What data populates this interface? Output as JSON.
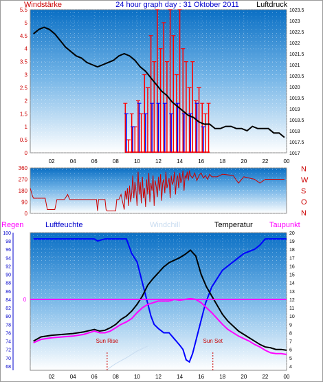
{
  "header": {
    "left": "Windstärke",
    "center": "24 hour graph day : 31 Oktober 2011",
    "right": "Luftdruck"
  },
  "x_ticks": [
    "02",
    "04",
    "06",
    "08",
    "10",
    "12",
    "14",
    "16",
    "18",
    "20",
    "22",
    "00"
  ],
  "panel1": {
    "left_ticks": [
      "5.5",
      "5",
      "4.5",
      "4",
      "3.5",
      "3",
      "2.5",
      "2",
      "1.5",
      "1",
      "0.5",
      "0"
    ],
    "right_ticks": [
      "1023.5",
      "1023",
      "1022.5",
      "1022",
      "1021.5",
      "1021",
      "1020.5",
      "1020",
      "1019.5",
      "1019",
      "1018.5",
      "1018",
      "1017.5",
      "1017"
    ]
  },
  "panel2": {
    "left_ticks": [
      "360",
      "270",
      "180",
      "90",
      "0"
    ],
    "right_letters": [
      "N",
      "W",
      "S",
      "O",
      "N"
    ]
  },
  "panel3": {
    "labels": {
      "regen": "Regen",
      "luftfeuchte": "Luftfeuchte",
      "windchill": "Windchill",
      "temperatur": "Temperatur",
      "taupunkt": "Taupunkt"
    },
    "left_ticks": [
      "100",
      "98",
      "96",
      "94",
      "92",
      "90",
      "88",
      "86",
      "84",
      "82",
      "80",
      "78",
      "76",
      "74",
      "72",
      "70",
      "68"
    ],
    "right_ticks": [
      "20",
      "19",
      "18",
      "17",
      "16",
      "15",
      "14",
      "13",
      "12",
      "11",
      "10",
      "9",
      "8",
      "7",
      "6",
      "5",
      "4"
    ],
    "zero_label": "0",
    "sunrise": "Sun Rise",
    "sunset": "Sun Set"
  },
  "colors": {
    "background_top": "#0a6fc4",
    "background_bottom": "#ffffff",
    "wind_avg": "#ff0000",
    "wind_gust": "#0000ff",
    "pressure": "#000000",
    "direction": "#cc0000",
    "humidity": "#0000ff",
    "temperature": "#000000",
    "dewpoint": "#ff00ff",
    "rain": "#ff00ff",
    "windchill": "#c8dcf0",
    "axis_left": "#cc0000",
    "axis_humidity": "#0000cc"
  },
  "chart_data": [
    {
      "type": "line",
      "title": "24 hour graph day : 31 Oktober 2011",
      "xlabel": "",
      "ylabel": "Windstärke",
      "ylabel_right": "Luftdruck",
      "xlim": [
        0,
        24
      ],
      "ylim": [
        0,
        5.5
      ],
      "ylim_right": [
        1017,
        1023.5
      ],
      "series": [
        {
          "name": "Windstärke",
          "axis": "left",
          "style": "bars",
          "color": "#ff0000",
          "x": [
            8.9,
            9.2,
            9.5,
            9.8,
            10.1,
            10.4,
            10.7,
            11.0,
            11.3,
            11.6,
            11.9,
            12.2,
            12.5,
            12.8,
            13.1,
            13.4,
            13.7,
            14.0,
            14.3,
            14.6,
            14.9,
            15.2,
            15.5,
            15.8,
            16.1,
            16.4,
            16.7
          ],
          "y": [
            1.9,
            0.5,
            1.5,
            1,
            2,
            1.5,
            3,
            2.5,
            4.5,
            3.5,
            5.5,
            4,
            5,
            3.5,
            5.5,
            4.5,
            3,
            5.5,
            4,
            3.5,
            2.5,
            3.5,
            2,
            2.5,
            1.9,
            1.5,
            1.9
          ]
        },
        {
          "name": "Böen",
          "axis": "left",
          "style": "bars",
          "color": "#0000ff",
          "x": [
            9.0,
            9.6,
            10.2,
            10.8,
            11.4,
            12.0,
            12.6,
            13.2,
            13.8,
            14.4,
            15.0,
            15.6,
            16.2
          ],
          "y": [
            1.5,
            1,
            1.9,
            1.5,
            1.9,
            1.9,
            1.9,
            1.5,
            1.9,
            1.5,
            1.5,
            1.9,
            1
          ]
        },
        {
          "name": "Luftdruck",
          "axis": "right",
          "style": "line",
          "color": "#000000",
          "x": [
            0.3,
            0.8,
            1.3,
            1.8,
            2.3,
            2.8,
            3.3,
            3.8,
            4.3,
            4.8,
            5.3,
            5.8,
            6.3,
            6.8,
            7.3,
            7.8,
            8.3,
            8.8,
            9.3,
            9.8,
            10.3,
            10.8,
            11.3,
            11.8,
            12.3,
            12.8,
            13.3,
            13.8,
            14.3,
            14.8,
            15.3,
            15.8,
            16.3,
            16.8,
            17.3,
            17.8,
            18.3,
            18.8,
            19.3,
            19.8,
            20.3,
            20.8,
            21.3,
            21.8,
            22.3,
            22.8,
            23.3,
            23.8
          ],
          "y": [
            1022.4,
            1022.6,
            1022.7,
            1022.6,
            1022.4,
            1022.1,
            1021.8,
            1021.6,
            1021.4,
            1021.3,
            1021.1,
            1021.0,
            1020.9,
            1021.0,
            1021.1,
            1021.2,
            1021.4,
            1021.5,
            1021.4,
            1021.2,
            1020.9,
            1020.7,
            1020.4,
            1020.1,
            1019.8,
            1019.6,
            1019.3,
            1019.1,
            1018.9,
            1018.7,
            1018.6,
            1018.4,
            1018.3,
            1018.3,
            1018.1,
            1018.1,
            1018.2,
            1018.2,
            1018.1,
            1018.1,
            1018.0,
            1018.2,
            1018.1,
            1018.1,
            1018.1,
            1017.9,
            1017.9,
            1017.7
          ]
        }
      ]
    },
    {
      "type": "line",
      "xlabel": "",
      "ylabel": "",
      "xlim": [
        0,
        24
      ],
      "ylim": [
        0,
        360
      ],
      "series": [
        {
          "name": "Windrichtung",
          "color": "#cc0000",
          "x": [
            0.0,
            0.2,
            0.3,
            1.4,
            1.6,
            2.3,
            2.5,
            3.2,
            3.5,
            3.7,
            4.5,
            5.5,
            6.2,
            6.3,
            6.4,
            7.0,
            7.1,
            7.2,
            8.0,
            8.1,
            8.3,
            8.5,
            8.6,
            8.8,
            8.9,
            9.0,
            9.1,
            9.2,
            9.3,
            9.4,
            9.5,
            9.6,
            9.7,
            9.8,
            9.9,
            10.0,
            10.1,
            10.2,
            10.3,
            10.4,
            10.5,
            10.6,
            10.7,
            10.8,
            10.9,
            11.0,
            11.1,
            11.2,
            11.3,
            11.4,
            11.5,
            11.6,
            11.7,
            11.8,
            11.9,
            12.0,
            12.1,
            12.2,
            12.3,
            12.4,
            12.5,
            12.6,
            12.7,
            12.8,
            12.9,
            13.0,
            13.1,
            13.2,
            13.3,
            13.4,
            13.5,
            13.6,
            13.7,
            13.8,
            13.9,
            14.0,
            14.1,
            14.2,
            14.3,
            14.4,
            14.5,
            14.6,
            14.7,
            14.8,
            14.9,
            15.0,
            15.2,
            15.4,
            15.6,
            15.8,
            16.0,
            16.2,
            16.4,
            16.6,
            16.8,
            17.0,
            17.5,
            18.0,
            19.0,
            19.5,
            20.0,
            21.0,
            21.5,
            22.0,
            23.0,
            23.8
          ],
          "y": [
            200,
            140,
            120,
            120,
            30,
            30,
            110,
            110,
            150,
            110,
            110,
            110,
            110,
            20,
            110,
            110,
            30,
            20,
            20,
            110,
            110,
            150,
            110,
            30,
            180,
            110,
            200,
            60,
            220,
            90,
            160,
            300,
            120,
            250,
            180,
            60,
            330,
            150,
            250,
            80,
            290,
            120,
            200,
            50,
            270,
            150,
            320,
            90,
            240,
            180,
            300,
            60,
            260,
            210,
            130,
            290,
            180,
            310,
            100,
            240,
            270,
            160,
            330,
            200,
            240,
            280,
            120,
            300,
            230,
            250,
            330,
            150,
            270,
            300,
            200,
            320,
            240,
            270,
            340,
            180,
            300,
            280,
            330,
            260,
            340,
            300,
            280,
            320,
            260,
            300,
            320,
            280,
            300,
            270,
            310,
            290,
            290,
            310,
            300,
            240,
            290,
            270,
            240,
            270,
            270,
            270
          ]
        }
      ]
    },
    {
      "type": "line",
      "xlabel": "",
      "ylabel": "Luftfeuchte",
      "ylabel_right": "Temperatur",
      "xlim": [
        0,
        24
      ],
      "ylim": [
        67,
        100
      ],
      "ylim_right": [
        3.5,
        20
      ],
      "series": [
        {
          "name": "Luftfeuchte",
          "axis": "left",
          "color": "#0000ff",
          "x": [
            0.3,
            2,
            4,
            6,
            6.3,
            7,
            8,
            9,
            9.5,
            10,
            10.3,
            10.7,
            11,
            11.3,
            11.6,
            12,
            12.5,
            13,
            13.5,
            14,
            14.3,
            14.6,
            14.9,
            15.2,
            15.5,
            15.8,
            16.1,
            16.4,
            16.7,
            17,
            17.5,
            18,
            19,
            20,
            21,
            21.5,
            22,
            23,
            24
          ],
          "y": [
            98.5,
            98.5,
            98.5,
            98.5,
            98,
            98.5,
            98.5,
            98.5,
            95,
            93,
            90,
            86,
            83,
            80,
            78,
            77,
            76,
            76,
            74.5,
            73,
            72,
            69.5,
            69,
            71,
            74,
            77,
            80,
            83,
            85,
            87,
            89,
            91,
            93,
            95,
            96,
            97,
            98.5,
            98.5,
            98.5
          ]
        },
        {
          "name": "Temperatur",
          "axis": "right",
          "color": "#000000",
          "x": [
            0.3,
            1,
            2,
            3,
            4,
            5,
            6,
            6.5,
            7,
            7.5,
            8,
            8.5,
            9,
            9.5,
            10,
            10.5,
            11,
            11.5,
            12,
            12.5,
            13,
            13.5,
            14,
            14.5,
            15,
            15.5,
            16,
            16.5,
            17,
            17.5,
            18,
            18.5,
            19,
            19.5,
            20,
            20.5,
            21,
            21.5,
            22,
            22.5,
            23,
            23.5,
            24
          ],
          "y": [
            7.0,
            7.5,
            7.7,
            7.8,
            7.9,
            8.1,
            8.4,
            8.2,
            8.3,
            8.6,
            9.0,
            9.6,
            10.0,
            10.6,
            11.4,
            12.4,
            13.7,
            14.5,
            15.2,
            15.9,
            16.4,
            16.7,
            17.0,
            17.4,
            17.9,
            17.2,
            15.0,
            13.5,
            12.4,
            11.3,
            10.2,
            9.4,
            8.8,
            8.2,
            7.8,
            7.4,
            7.0,
            6.6,
            6.3,
            6.2,
            6.0,
            6.0,
            5.9
          ]
        },
        {
          "name": "Taupunkt",
          "axis": "right",
          "color": "#ff00ff",
          "x": [
            0.3,
            1,
            2,
            3,
            4,
            5,
            6,
            6.5,
            7,
            7.5,
            8,
            8.5,
            9,
            9.5,
            10,
            10.5,
            11,
            11.5,
            12,
            12.5,
            13,
            13.5,
            14,
            14.5,
            15,
            15.5,
            16,
            16.5,
            17,
            17.5,
            18,
            18.5,
            19,
            19.5,
            20,
            20.5,
            21,
            21.5,
            22,
            22.5,
            23,
            23.5,
            24
          ],
          "y": [
            6.8,
            7.2,
            7.4,
            7.5,
            7.6,
            7.8,
            8.2,
            8.0,
            8.0,
            8.2,
            8.6,
            9.0,
            9.3,
            9.7,
            10.4,
            11.0,
            11.4,
            11.6,
            11.8,
            11.8,
            11.8,
            12.0,
            11.9,
            12.0,
            12.1,
            12.0,
            11.6,
            11.0,
            10.4,
            9.7,
            9.0,
            8.4,
            8.0,
            7.6,
            7.3,
            7.0,
            6.6,
            6.3,
            5.9,
            5.6,
            5.5,
            5.5,
            5.4
          ]
        },
        {
          "name": "Regen",
          "axis": "right",
          "color": "#ff00ff",
          "x": [
            0,
            24
          ],
          "y": [
            12,
            12
          ]
        },
        {
          "name": "Windchill",
          "axis": "right",
          "color": "#c8dcf0",
          "x": [
            7.2,
            8,
            9,
            10,
            11
          ],
          "y": [
            3.6,
            4.3,
            5.0,
            5.8,
            6.4
          ]
        }
      ],
      "annotations": [
        {
          "text": "Sun Rise",
          "x": 7.2
        },
        {
          "text": "Sun Set",
          "x": 17.1
        }
      ]
    }
  ]
}
